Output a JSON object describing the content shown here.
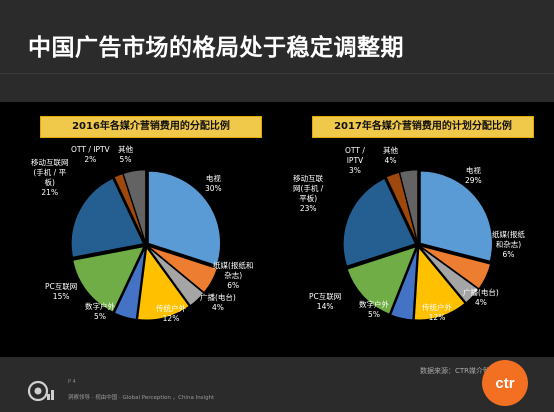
{
  "slide": {
    "title": "中国广告市场的格局处于稳定调整期",
    "source": "数据来源：CTR媒介智讯",
    "page_number": "P 4",
    "tagline": "洞察领导 · 视由中国 · Global  Perception ，China  Insight",
    "logo_text": "ctr"
  },
  "colors": {
    "tv": "#5a9bd5",
    "print": "#ed7d31",
    "radio": "#a5a5a5",
    "outdoor_traditional": "#ffc000",
    "outdoor_digital": "#4472c4",
    "pc_internet": "#70ad47",
    "mobile_internet": "#255e91",
    "ott_iptv": "#9e480e",
    "other": "#636363",
    "heading_fill": "#f0c84a",
    "brand": "#f36f21"
  },
  "chart_data": [
    {
      "type": "pie",
      "title": "2016年各媒介营销费用的分配比例",
      "slices": [
        {
          "label": "电视",
          "value": 30,
          "value_label": "30%",
          "color": "#5a9bd5"
        },
        {
          "label": "纸媒(报纸和杂志)",
          "value": 6,
          "value_label": "6%",
          "color": "#ed7d31"
        },
        {
          "label": "广播(电台)",
          "value": 4,
          "value_label": "4%",
          "color": "#a5a5a5"
        },
        {
          "label": "传统户外",
          "value": 12,
          "value_label": "12%",
          "color": "#ffc000"
        },
        {
          "label": "数字户外",
          "value": 5,
          "value_label": "5%",
          "color": "#4472c4"
        },
        {
          "label": "PC互联网",
          "value": 15,
          "value_label": "15%",
          "color": "#70ad47"
        },
        {
          "label": "移动互联网(手机/平板)",
          "value": 21,
          "value_label": "21%",
          "color": "#255e91"
        },
        {
          "label": "OTT/IPTV",
          "value": 2,
          "value_label": "2%",
          "color": "#9e480e"
        },
        {
          "label": "其他",
          "value": 5,
          "value_label": "5%",
          "color": "#636363"
        }
      ],
      "display_labels": {
        "tv_name": "电视",
        "tv_value": "30%",
        "print_name_1": "纸媒(报纸和",
        "print_name_2": "杂志)",
        "print_value": "6%",
        "radio_name": "广播(电台)",
        "radio_value": "4%",
        "outdoor_name": "传统户外",
        "outdoor_value": "12%",
        "digital_name": "数字户外",
        "digital_value": "5%",
        "pc_name": "PC互联网",
        "pc_value": "15%",
        "mobile_name_1": "移动互联网",
        "mobile_name_2": "(手机 / 平",
        "mobile_name_3": "板)",
        "mobile_value": "21%",
        "ott_name": "OTT / IPTV",
        "ott_value": "2%",
        "other_name": "其他",
        "other_value": "5%"
      }
    },
    {
      "type": "pie",
      "title": "2017年各媒介营销费用的计划分配比例",
      "slices": [
        {
          "label": "电视",
          "value": 29,
          "value_label": "29%",
          "color": "#5a9bd5"
        },
        {
          "label": "纸媒(报纸和杂志)",
          "value": 6,
          "value_label": "6%",
          "color": "#ed7d31"
        },
        {
          "label": "广播(电台)",
          "value": 4,
          "value_label": "4%",
          "color": "#a5a5a5"
        },
        {
          "label": "传统户外",
          "value": 12,
          "value_label": "12%",
          "color": "#ffc000"
        },
        {
          "label": "数字户外",
          "value": 5,
          "value_label": "5%",
          "color": "#4472c4"
        },
        {
          "label": "PC互联网",
          "value": 14,
          "value_label": "14%",
          "color": "#70ad47"
        },
        {
          "label": "移动互联网(手机/平板)",
          "value": 23,
          "value_label": "23%",
          "color": "#255e91"
        },
        {
          "label": "OTT/IPTV",
          "value": 3,
          "value_label": "3%",
          "color": "#9e480e"
        },
        {
          "label": "其他",
          "value": 4,
          "value_label": "4%",
          "color": "#636363"
        }
      ],
      "display_labels": {
        "tv_name": "电视",
        "tv_value": "29%",
        "print_name_1": "纸媒(报纸",
        "print_name_2": "和杂志)",
        "print_value": "6%",
        "radio_name": "广播(电台)",
        "radio_value": "4%",
        "outdoor_name": "传统户外",
        "outdoor_value": "12%",
        "digital_name": "数字户外",
        "digital_value": "5%",
        "pc_name": "PC互联网",
        "pc_value": "14%",
        "mobile_name_1": "移动互联",
        "mobile_name_2": "网(手机 /",
        "mobile_name_3": "平板)",
        "mobile_value": "23%",
        "ott_name_1": "OTT /",
        "ott_name_2": "IPTV",
        "ott_value": "3%",
        "other_name": "其他",
        "other_value": "4%"
      }
    }
  ]
}
